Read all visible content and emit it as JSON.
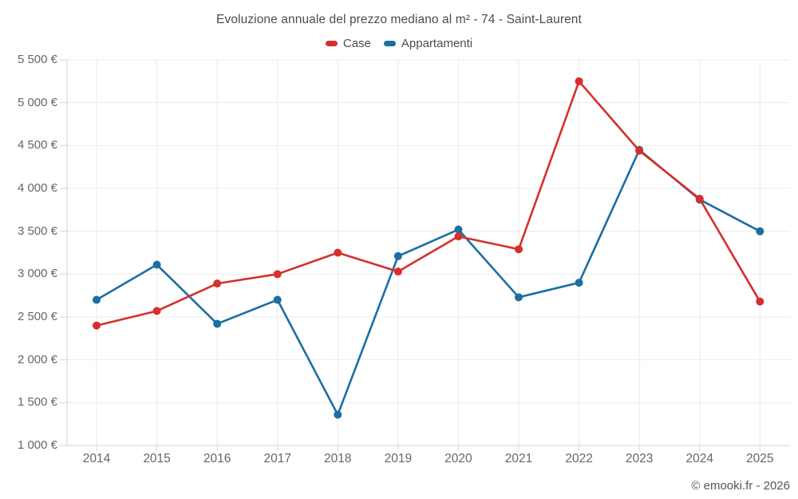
{
  "chart_data": {
    "type": "line",
    "title": "Evoluzione annuale del prezzo mediano al m² - 74 - Saint-Laurent",
    "categories": [
      "2014",
      "2015",
      "2016",
      "2017",
      "2018",
      "2019",
      "2020",
      "2021",
      "2022",
      "2023",
      "2024",
      "2025"
    ],
    "series": [
      {
        "name": "Case",
        "color": "#d62f2c",
        "values": [
          2400,
          2570,
          2890,
          3000,
          3250,
          3030,
          3440,
          3290,
          5250,
          4440,
          3880,
          2680
        ]
      },
      {
        "name": "Appartamenti",
        "color": "#1c6ea4",
        "values": [
          2700,
          3110,
          2420,
          2700,
          1360,
          3210,
          3520,
          2730,
          2900,
          4450,
          3870,
          3500
        ]
      }
    ],
    "xlabel": "",
    "ylabel": "",
    "ylim": [
      1000,
      5500
    ],
    "y_ticks": [
      1000,
      1500,
      2000,
      2500,
      3000,
      3500,
      4000,
      4500,
      5000,
      5500
    ],
    "y_tick_labels": [
      "1 000 €",
      "1 500 €",
      "2 000 €",
      "2 500 €",
      "3 000 €",
      "3 500 €",
      "4 000 €",
      "4 500 €",
      "5 000 €",
      "5 500 €"
    ],
    "grid": true,
    "legend_position": "top",
    "footer": "© emooki.fr - 2026",
    "colors": {
      "grid": "#ebebeb",
      "axis": "#d3d3d3",
      "tick_text": "#666666",
      "title_text": "#4d4d4d",
      "background": "#ffffff"
    }
  }
}
